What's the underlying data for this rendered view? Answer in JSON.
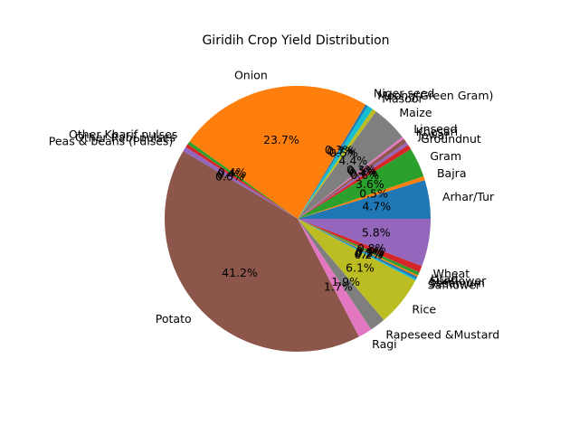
{
  "chart_data": {
    "type": "pie",
    "title": "Giridih Crop Yield Distribution",
    "slices": [
      {
        "label": "Arhar/Tur",
        "value": 4.7,
        "pct_label": "4.7%",
        "color": "#1f77b4"
      },
      {
        "label": "Bajra",
        "value": 0.5,
        "pct_label": "0.5%",
        "color": "#ff7f0e"
      },
      {
        "label": "Gram",
        "value": 3.6,
        "pct_label": "3.6%",
        "color": "#2ca02c"
      },
      {
        "label": "Groundnut",
        "value": 0.6,
        "pct_label": "0.6%",
        "color": "#d62728"
      },
      {
        "label": "Jowar",
        "value": 0.4,
        "pct_label": "0.4%",
        "color": "#9467bd"
      },
      {
        "label": "Khesari",
        "value": 0.5,
        "pct_label": "0.5%",
        "color": "#8c564b"
      },
      {
        "label": "Linseed",
        "value": 0.3,
        "pct_label": "0.3%",
        "color": "#e377c2"
      },
      {
        "label": "Maize",
        "value": 4.4,
        "pct_label": "4.4%",
        "color": "#7f7f7f"
      },
      {
        "label": "Masoor",
        "value": 0.5,
        "pct_label": "0.5%",
        "color": "#bcbd22"
      },
      {
        "label": "Moong(Green Gram)",
        "value": 0.7,
        "pct_label": "0.7%",
        "color": "#17becf"
      },
      {
        "label": "Niger seed",
        "value": 0.3,
        "pct_label": "0.3%",
        "color": "#1f77b4"
      },
      {
        "label": "Onion",
        "value": 23.7,
        "pct_label": "23.7%",
        "color": "#ff7f0e"
      },
      {
        "label": "Other Kharif pulses",
        "value": 0.4,
        "pct_label": "0.4%",
        "color": "#2ca02c"
      },
      {
        "label": "Other Rabi pulses",
        "value": 0.4,
        "pct_label": "0.4%",
        "color": "#d62728"
      },
      {
        "label": "Peas & beans (Pulses)",
        "value": 0.6,
        "pct_label": "0.6%",
        "color": "#9467bd"
      },
      {
        "label": "Potato",
        "value": 41.2,
        "pct_label": "41.2%",
        "color": "#8c564b"
      },
      {
        "label": "Ragi",
        "value": 1.7,
        "pct_label": "1.7%",
        "color": "#e377c2"
      },
      {
        "label": "Rapeseed &Mustard",
        "value": 1.9,
        "pct_label": "1.9%",
        "color": "#7f7f7f"
      },
      {
        "label": "Rice",
        "value": 6.1,
        "pct_label": "6.1%",
        "color": "#bcbd22"
      },
      {
        "label": "Safflower",
        "value": 0.2,
        "pct_label": "0.2%",
        "color": "#17becf"
      },
      {
        "label": "Sesamum",
        "value": 0.3,
        "pct_label": "0.3%",
        "color": "#1f77b4"
      },
      {
        "label": "Sunflower",
        "value": 0.2,
        "pct_label": "0.2%",
        "color": "#ff7f0e"
      },
      {
        "label": "Urad",
        "value": 0.4,
        "pct_label": "0.4%",
        "color": "#2ca02c"
      },
      {
        "label": "Wheat",
        "value": 0.8,
        "pct_label": "0.8%",
        "color": "#d62728"
      },
      {
        "label": "",
        "value": 5.8,
        "pct_label": "5.8%",
        "color": "#9467bd"
      }
    ]
  }
}
